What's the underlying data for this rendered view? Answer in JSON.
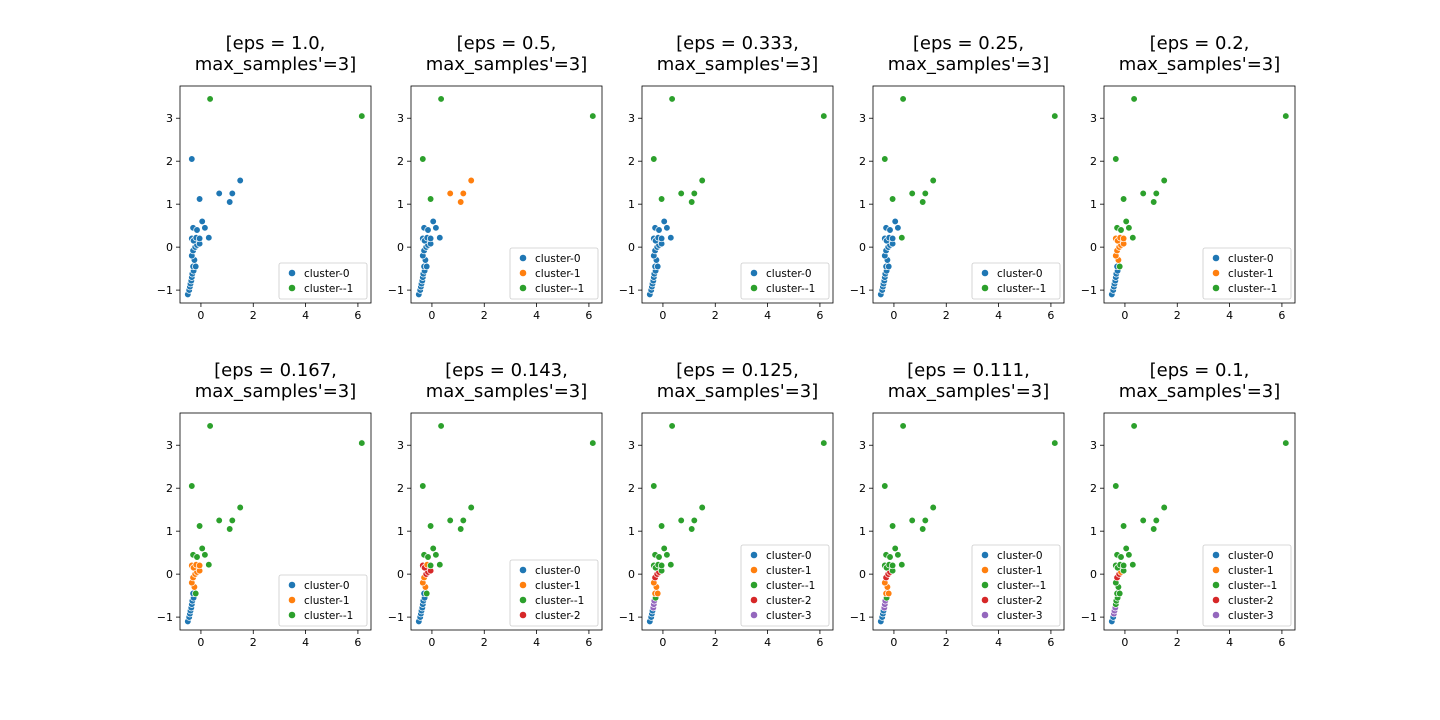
{
  "figure": {
    "palette": {
      "cluster-0": "#1f77b4",
      "cluster-1": "#ff7f0e",
      "cluster--1": "#2ca02c",
      "cluster-2": "#d62728",
      "cluster-3": "#9467bd"
    },
    "xlim": [
      -0.8,
      6.5
    ],
    "ylim": [
      -1.3,
      3.75
    ],
    "xticks": [
      0,
      2,
      4,
      6
    ],
    "yticks": [
      -1,
      0,
      1,
      2,
      3
    ],
    "points": [
      [
        -0.5,
        -1.1
      ],
      [
        -0.45,
        -1.0
      ],
      [
        -0.42,
        -0.92
      ],
      [
        -0.4,
        -0.85
      ],
      [
        -0.37,
        -0.78
      ],
      [
        -0.35,
        -0.7
      ],
      [
        -0.33,
        -0.62
      ],
      [
        -0.28,
        -0.55
      ],
      [
        -0.3,
        -0.45
      ],
      [
        -0.2,
        -0.45
      ],
      [
        -0.25,
        -0.3
      ],
      [
        -0.35,
        -0.2
      ],
      [
        -0.3,
        -0.08
      ],
      [
        -0.22,
        0.0
      ],
      [
        -0.15,
        0.05
      ],
      [
        -0.05,
        0.08
      ],
      [
        -0.35,
        0.2
      ],
      [
        -0.28,
        0.15
      ],
      [
        -0.18,
        0.22
      ],
      [
        -0.05,
        0.2
      ],
      [
        -0.3,
        0.45
      ],
      [
        -0.15,
        0.4
      ],
      [
        0.05,
        0.6
      ],
      [
        0.15,
        0.45
      ],
      [
        0.3,
        0.22
      ],
      [
        -0.05,
        1.12
      ],
      [
        -0.35,
        2.05
      ],
      [
        0.7,
        1.25
      ],
      [
        1.1,
        1.05
      ],
      [
        1.2,
        1.25
      ],
      [
        1.5,
        1.55
      ],
      [
        0.35,
        3.45
      ],
      [
        6.15,
        3.05
      ]
    ]
  },
  "chart_data": [
    {
      "type": "scatter",
      "title": "[eps = 1.0,\nmax_samples'=3]",
      "legend": [
        "cluster-0",
        "cluster--1"
      ],
      "labels": [
        "cluster-0",
        "cluster-0",
        "cluster-0",
        "cluster-0",
        "cluster-0",
        "cluster-0",
        "cluster-0",
        "cluster-0",
        "cluster-0",
        "cluster-0",
        "cluster-0",
        "cluster-0",
        "cluster-0",
        "cluster-0",
        "cluster-0",
        "cluster-0",
        "cluster-0",
        "cluster-0",
        "cluster-0",
        "cluster-0",
        "cluster-0",
        "cluster-0",
        "cluster-0",
        "cluster-0",
        "cluster-0",
        "cluster-0",
        "cluster-0",
        "cluster-0",
        "cluster-0",
        "cluster-0",
        "cluster-0",
        "cluster--1",
        "cluster--1"
      ]
    },
    {
      "type": "scatter",
      "title": "[eps = 0.5,\nmax_samples'=3]",
      "legend": [
        "cluster-0",
        "cluster-1",
        "cluster--1"
      ],
      "labels": [
        "cluster-0",
        "cluster-0",
        "cluster-0",
        "cluster-0",
        "cluster-0",
        "cluster-0",
        "cluster-0",
        "cluster-0",
        "cluster-0",
        "cluster-0",
        "cluster-0",
        "cluster-0",
        "cluster-0",
        "cluster-0",
        "cluster-0",
        "cluster-0",
        "cluster-0",
        "cluster-0",
        "cluster-0",
        "cluster-0",
        "cluster-0",
        "cluster-0",
        "cluster-0",
        "cluster-0",
        "cluster-0",
        "cluster--1",
        "cluster--1",
        "cluster-1",
        "cluster-1",
        "cluster-1",
        "cluster-1",
        "cluster--1",
        "cluster--1"
      ]
    },
    {
      "type": "scatter",
      "title": "[eps = 0.333,\nmax_samples'=3]",
      "legend": [
        "cluster-0",
        "cluster--1"
      ],
      "labels": [
        "cluster-0",
        "cluster-0",
        "cluster-0",
        "cluster-0",
        "cluster-0",
        "cluster-0",
        "cluster-0",
        "cluster-0",
        "cluster-0",
        "cluster-0",
        "cluster-0",
        "cluster-0",
        "cluster-0",
        "cluster-0",
        "cluster-0",
        "cluster-0",
        "cluster-0",
        "cluster-0",
        "cluster-0",
        "cluster-0",
        "cluster-0",
        "cluster-0",
        "cluster-0",
        "cluster-0",
        "cluster-0",
        "cluster--1",
        "cluster--1",
        "cluster--1",
        "cluster--1",
        "cluster--1",
        "cluster--1",
        "cluster--1",
        "cluster--1"
      ]
    },
    {
      "type": "scatter",
      "title": "[eps = 0.25,\nmax_samples'=3]",
      "legend": [
        "cluster-0",
        "cluster--1"
      ],
      "labels": [
        "cluster-0",
        "cluster-0",
        "cluster-0",
        "cluster-0",
        "cluster-0",
        "cluster-0",
        "cluster-0",
        "cluster-0",
        "cluster-0",
        "cluster-0",
        "cluster-0",
        "cluster-0",
        "cluster-0",
        "cluster-0",
        "cluster-0",
        "cluster-0",
        "cluster-0",
        "cluster-0",
        "cluster-0",
        "cluster-0",
        "cluster-0",
        "cluster-0",
        "cluster-0",
        "cluster-0",
        "cluster--1",
        "cluster--1",
        "cluster--1",
        "cluster--1",
        "cluster--1",
        "cluster--1",
        "cluster--1",
        "cluster--1",
        "cluster--1"
      ]
    },
    {
      "type": "scatter",
      "title": "[eps = 0.2,\nmax_samples'=3]",
      "legend": [
        "cluster-0",
        "cluster-1",
        "cluster--1"
      ],
      "labels": [
        "cluster-0",
        "cluster-0",
        "cluster-0",
        "cluster-0",
        "cluster-0",
        "cluster-0",
        "cluster-0",
        "cluster-0",
        "cluster-0",
        "cluster--1",
        "cluster-1",
        "cluster-1",
        "cluster-1",
        "cluster-1",
        "cluster-1",
        "cluster-1",
        "cluster-1",
        "cluster-1",
        "cluster-1",
        "cluster-1",
        "cluster--1",
        "cluster--1",
        "cluster--1",
        "cluster--1",
        "cluster--1",
        "cluster--1",
        "cluster--1",
        "cluster--1",
        "cluster--1",
        "cluster--1",
        "cluster--1",
        "cluster--1",
        "cluster--1"
      ]
    },
    {
      "type": "scatter",
      "title": "[eps = 0.167,\nmax_samples'=3]",
      "legend": [
        "cluster-0",
        "cluster-1",
        "cluster--1"
      ],
      "labels": [
        "cluster-0",
        "cluster-0",
        "cluster-0",
        "cluster-0",
        "cluster-0",
        "cluster-0",
        "cluster-0",
        "cluster-0",
        "cluster-0",
        "cluster--1",
        "cluster-1",
        "cluster-1",
        "cluster-1",
        "cluster-1",
        "cluster-1",
        "cluster-1",
        "cluster-1",
        "cluster-1",
        "cluster-1",
        "cluster-1",
        "cluster--1",
        "cluster--1",
        "cluster--1",
        "cluster--1",
        "cluster--1",
        "cluster--1",
        "cluster--1",
        "cluster--1",
        "cluster--1",
        "cluster--1",
        "cluster--1",
        "cluster--1",
        "cluster--1"
      ]
    },
    {
      "type": "scatter",
      "title": "[eps = 0.143,\nmax_samples'=3]",
      "legend": [
        "cluster-0",
        "cluster-1",
        "cluster--1",
        "cluster-2"
      ],
      "labels": [
        "cluster-0",
        "cluster-0",
        "cluster-0",
        "cluster-0",
        "cluster-0",
        "cluster-0",
        "cluster-0",
        "cluster-0",
        "cluster-0",
        "cluster--1",
        "cluster-1",
        "cluster-1",
        "cluster-1",
        "cluster-2",
        "cluster-2",
        "cluster-2",
        "cluster-2",
        "cluster-2",
        "cluster-1",
        "cluster--1",
        "cluster--1",
        "cluster--1",
        "cluster--1",
        "cluster--1",
        "cluster--1",
        "cluster--1",
        "cluster--1",
        "cluster--1",
        "cluster--1",
        "cluster--1",
        "cluster--1",
        "cluster--1",
        "cluster--1"
      ]
    },
    {
      "type": "scatter",
      "title": "[eps = 0.125,\nmax_samples'=3]",
      "legend": [
        "cluster-0",
        "cluster-1",
        "cluster--1",
        "cluster-2",
        "cluster-3"
      ],
      "labels": [
        "cluster-0",
        "cluster-0",
        "cluster-0",
        "cluster-0",
        "cluster-3",
        "cluster-3",
        "cluster-3",
        "cluster--1",
        "cluster-1",
        "cluster-1",
        "cluster-1",
        "cluster-1",
        "cluster-2",
        "cluster-2",
        "cluster-2",
        "cluster--1",
        "cluster--1",
        "cluster--1",
        "cluster--1",
        "cluster--1",
        "cluster--1",
        "cluster--1",
        "cluster--1",
        "cluster--1",
        "cluster--1",
        "cluster--1",
        "cluster--1",
        "cluster--1",
        "cluster--1",
        "cluster--1",
        "cluster--1",
        "cluster--1",
        "cluster--1"
      ]
    },
    {
      "type": "scatter",
      "title": "[eps = 0.111,\nmax_samples'=3]",
      "legend": [
        "cluster-0",
        "cluster-1",
        "cluster--1",
        "cluster-2",
        "cluster-3"
      ],
      "labels": [
        "cluster-0",
        "cluster-0",
        "cluster-0",
        "cluster-0",
        "cluster-3",
        "cluster-3",
        "cluster-3",
        "cluster--1",
        "cluster-1",
        "cluster-1",
        "cluster-1",
        "cluster-1",
        "cluster-2",
        "cluster-2",
        "cluster-2",
        "cluster--1",
        "cluster--1",
        "cluster--1",
        "cluster--1",
        "cluster--1",
        "cluster--1",
        "cluster--1",
        "cluster--1",
        "cluster--1",
        "cluster--1",
        "cluster--1",
        "cluster--1",
        "cluster--1",
        "cluster--1",
        "cluster--1",
        "cluster--1",
        "cluster--1",
        "cluster--1"
      ]
    },
    {
      "type": "scatter",
      "title": "[eps = 0.1,\nmax_samples'=3]",
      "legend": [
        "cluster-0",
        "cluster-1",
        "cluster--1",
        "cluster-2",
        "cluster-3"
      ],
      "labels": [
        "cluster-0",
        "cluster-0",
        "cluster-3",
        "cluster-3",
        "cluster-3",
        "cluster--1",
        "cluster--1",
        "cluster--1",
        "cluster--1",
        "cluster--1",
        "cluster--1",
        "cluster--1",
        "cluster-2",
        "cluster-2",
        "cluster-1",
        "cluster--1",
        "cluster--1",
        "cluster--1",
        "cluster--1",
        "cluster--1",
        "cluster--1",
        "cluster--1",
        "cluster--1",
        "cluster--1",
        "cluster--1",
        "cluster--1",
        "cluster--1",
        "cluster--1",
        "cluster--1",
        "cluster--1",
        "cluster--1",
        "cluster--1",
        "cluster--1"
      ]
    }
  ]
}
